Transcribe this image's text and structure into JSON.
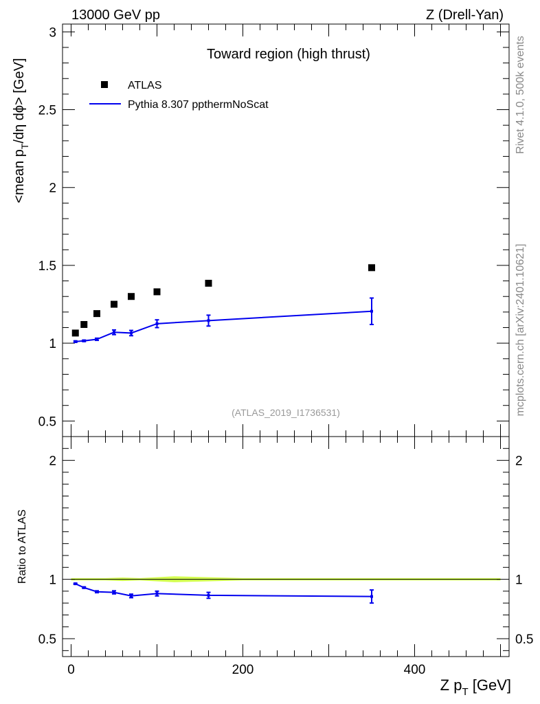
{
  "header": {
    "energy_label": "13000 GeV pp",
    "process_label": "Z (Drell-Yan)"
  },
  "side_labels": {
    "rivet": "Rivet 4.1.0,  500k events",
    "mcplots": "mcplots.cern.ch [arXiv:2401.10621]"
  },
  "colors": {
    "data": "#000000",
    "mc": "#0000ee",
    "band": "#ccff33"
  },
  "chart_data": [
    {
      "type": "scatter",
      "panel": "main",
      "title": "Toward region (high thrust)",
      "analysis_tag": "(ATLAS_2019_I1736531)",
      "ylabel_parts": [
        "<mean p",
        "T",
        "/dη dϕ> [GeV]"
      ],
      "xlim": [
        -10,
        510
      ],
      "ylim": [
        0.4,
        3.05
      ],
      "yticks": [
        0.5,
        1,
        1.5,
        2,
        2.5,
        3
      ],
      "ytick_labels": [
        "0.5",
        "1",
        "1.5",
        "2",
        "2.5",
        "3"
      ],
      "legend_position": "top-left",
      "series": [
        {
          "name": "ATLAS",
          "kind": "markers",
          "x": [
            5,
            15,
            30,
            50,
            70,
            100,
            160,
            350
          ],
          "y": [
            1.065,
            1.12,
            1.19,
            1.25,
            1.3,
            1.33,
            1.385,
            1.485
          ]
        },
        {
          "name": "Pythia 8.307 ppthermNoScat",
          "kind": "line",
          "x": [
            5,
            15,
            30,
            50,
            70,
            100,
            160,
            350
          ],
          "y": [
            1.01,
            1.015,
            1.025,
            1.07,
            1.065,
            1.125,
            1.145,
            1.205
          ],
          "err": [
            0.005,
            0.005,
            0.007,
            0.015,
            0.017,
            0.025,
            0.035,
            0.085
          ]
        }
      ]
    },
    {
      "type": "line",
      "panel": "ratio",
      "ylabel": "Ratio to ATLAS",
      "xlabel_parts": [
        "Z p",
        "T",
        " [GeV]"
      ],
      "xlim": [
        -10,
        510
      ],
      "ylim": [
        0.35,
        2.2
      ],
      "yticks": [
        0.5,
        1,
        2
      ],
      "ytick_labels": [
        "0.5",
        "1",
        "2"
      ],
      "xticks": [
        0,
        200,
        400
      ],
      "xtick_labels": [
        "0",
        "200",
        "400"
      ],
      "band": {
        "x": [
          0,
          10,
          20,
          40,
          60,
          80,
          120,
          200,
          500
        ],
        "lo": [
          0.99,
          0.99,
          0.99,
          0.99,
          0.985,
          0.99,
          0.975,
          0.99,
          0.99
        ],
        "hi": [
          1.01,
          1.01,
          1.01,
          1.01,
          1.015,
          1.01,
          1.025,
          1.01,
          1.01
        ]
      },
      "series": [
        {
          "name": "Pythia 8.307 ppthermNoScat / ATLAS",
          "x": [
            5,
            15,
            30,
            50,
            70,
            100,
            160,
            350
          ],
          "y": [
            0.962,
            0.93,
            0.895,
            0.89,
            0.86,
            0.88,
            0.865,
            0.855
          ],
          "err": [
            0.005,
            0.006,
            0.008,
            0.013,
            0.015,
            0.02,
            0.025,
            0.055
          ]
        }
      ]
    }
  ]
}
